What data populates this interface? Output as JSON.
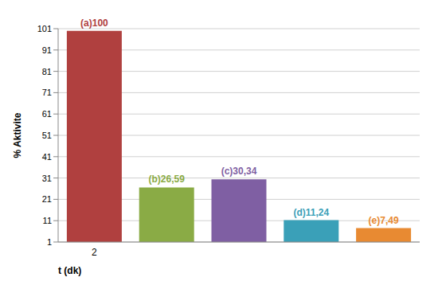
{
  "chart_data": {
    "type": "bar",
    "categories": [
      "2",
      null,
      null,
      null,
      null
    ],
    "values": [
      100,
      26.59,
      30.34,
      11.24,
      7.49
    ],
    "value_labels": [
      "(a)100",
      "(b)26,59",
      "(c)30,34",
      "(d)11,24",
      "(e)7,49"
    ],
    "colors": [
      "#b0403f",
      "#8aab45",
      "#7f5fa3",
      "#3aa0b8",
      "#e88a32"
    ],
    "x_label": "t (dk)",
    "y_label": "% Aktivite",
    "ylim": [
      1,
      101
    ],
    "yticks": [
      1,
      11,
      21,
      31,
      41,
      51,
      61,
      71,
      81,
      91,
      101
    ],
    "grid": true,
    "data_labels": true
  }
}
